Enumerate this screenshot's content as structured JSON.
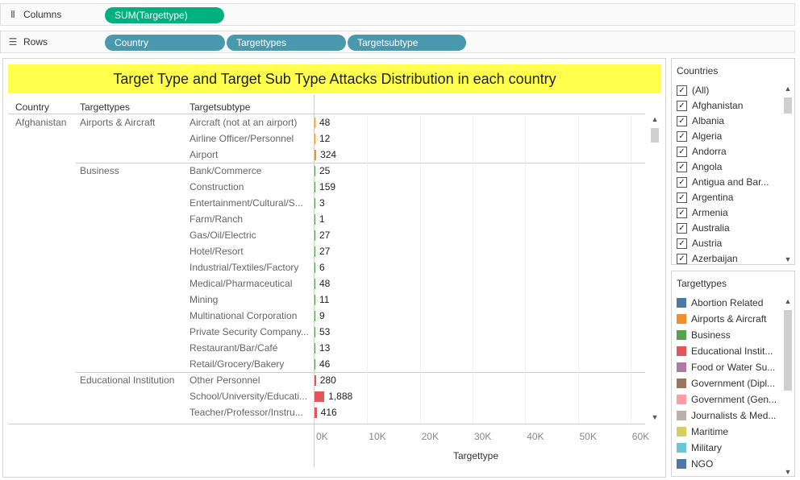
{
  "shelves": {
    "columns": {
      "label": "Columns",
      "pills": [
        "SUM(Targettype)"
      ]
    },
    "rows": {
      "label": "Rows",
      "pills": [
        "Country",
        "Targettypes",
        "Targetsubtype"
      ]
    }
  },
  "viz": {
    "title": "Target Type and Target Sub Type Attacks Distribution in each country",
    "headers": {
      "country": "Country",
      "targettypes": "Targettypes",
      "targetsubtype": "Targetsubtype"
    },
    "rows": [
      {
        "country": "Afghanistan",
        "type": "Airports & Aircraft",
        "sub": "Aircraft (not at an airport)",
        "value": "48",
        "num": 48,
        "color": "#f28e2b"
      },
      {
        "country": "",
        "type": "",
        "sub": "Airline Officer/Personnel",
        "value": "12",
        "num": 12,
        "color": "#f28e2b"
      },
      {
        "country": "",
        "type": "",
        "sub": "Airport",
        "value": "324",
        "num": 324,
        "color": "#f28e2b"
      },
      {
        "country": "",
        "type": "Business",
        "sub": "Bank/Commerce",
        "value": "25",
        "num": 25,
        "color": "#59a14f"
      },
      {
        "country": "",
        "type": "",
        "sub": "Construction",
        "value": "159",
        "num": 159,
        "color": "#59a14f"
      },
      {
        "country": "",
        "type": "",
        "sub": "Entertainment/Cultural/S...",
        "value": "3",
        "num": 3,
        "color": "#59a14f"
      },
      {
        "country": "",
        "type": "",
        "sub": "Farm/Ranch",
        "value": "1",
        "num": 1,
        "color": "#59a14f"
      },
      {
        "country": "",
        "type": "",
        "sub": "Gas/Oil/Electric",
        "value": "27",
        "num": 27,
        "color": "#59a14f"
      },
      {
        "country": "",
        "type": "",
        "sub": "Hotel/Resort",
        "value": "27",
        "num": 27,
        "color": "#59a14f"
      },
      {
        "country": "",
        "type": "",
        "sub": "Industrial/Textiles/Factory",
        "value": "6",
        "num": 6,
        "color": "#59a14f"
      },
      {
        "country": "",
        "type": "",
        "sub": "Medical/Pharmaceutical",
        "value": "48",
        "num": 48,
        "color": "#59a14f"
      },
      {
        "country": "",
        "type": "",
        "sub": "Mining",
        "value": "11",
        "num": 11,
        "color": "#59a14f"
      },
      {
        "country": "",
        "type": "",
        "sub": "Multinational Corporation",
        "value": "9",
        "num": 9,
        "color": "#59a14f"
      },
      {
        "country": "",
        "type": "",
        "sub": "Private Security Company...",
        "value": "53",
        "num": 53,
        "color": "#59a14f"
      },
      {
        "country": "",
        "type": "",
        "sub": "Restaurant/Bar/Café",
        "value": "13",
        "num": 13,
        "color": "#59a14f"
      },
      {
        "country": "",
        "type": "",
        "sub": "Retail/Grocery/Bakery",
        "value": "46",
        "num": 46,
        "color": "#59a14f"
      },
      {
        "country": "",
        "type": "Educational Institution",
        "sub": "Other Personnel",
        "value": "280",
        "num": 280,
        "color": "#e15759"
      },
      {
        "country": "",
        "type": "",
        "sub": "School/University/Educati...",
        "value": "1,888",
        "num": 1888,
        "color": "#e15759"
      },
      {
        "country": "",
        "type": "",
        "sub": "Teacher/Professor/Instru...",
        "value": "416",
        "num": 416,
        "color": "#e15759"
      }
    ],
    "axis": {
      "title": "Targettype",
      "ticks": [
        "0K",
        "10K",
        "20K",
        "30K",
        "40K",
        "50K",
        "60K"
      ],
      "max": 62000
    }
  },
  "countries": {
    "title": "Countries",
    "items": [
      "(All)",
      "Afghanistan",
      "Albania",
      "Algeria",
      "Andorra",
      "Angola",
      "Antigua and Bar...",
      "Argentina",
      "Armenia",
      "Australia",
      "Austria",
      "Azerbaijan"
    ]
  },
  "targettypes": {
    "title": "Targettypes",
    "items": [
      {
        "label": "Abortion Related",
        "color": "#4e79a7"
      },
      {
        "label": "Airports & Aircraft",
        "color": "#f28e2b"
      },
      {
        "label": "Business",
        "color": "#59a14f"
      },
      {
        "label": "Educational Instit...",
        "color": "#e15759"
      },
      {
        "label": "Food or Water Su...",
        "color": "#b07aa1"
      },
      {
        "label": "Government (Dipl...",
        "color": "#9c755f"
      },
      {
        "label": "Government (Gen...",
        "color": "#ff9da7"
      },
      {
        "label": "Journalists & Med...",
        "color": "#bab0ac"
      },
      {
        "label": "Maritime",
        "color": "#d4cf5f"
      },
      {
        "label": "Military",
        "color": "#6cc5d6"
      },
      {
        "label": "NGO",
        "color": "#4e79a7"
      }
    ]
  }
}
